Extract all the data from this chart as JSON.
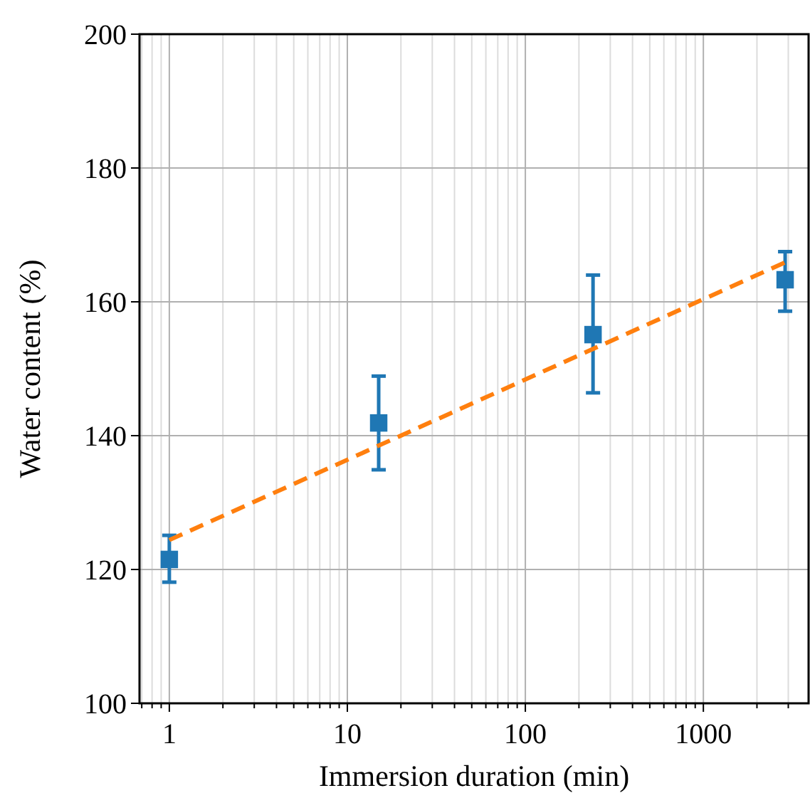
{
  "chart_data": {
    "type": "scatter",
    "xlabel": "Immersion duration (min)",
    "ylabel": "Water content (%)",
    "log": "x",
    "xlim": [
      0.68,
      3900
    ],
    "ylim": [
      100,
      200
    ],
    "xticks": [
      {
        "value": 0.7,
        "label": null
      },
      {
        "value": 0.8,
        "label": null
      },
      {
        "value": 0.9,
        "label": null
      },
      1,
      {
        "value": 2,
        "label": null
      },
      {
        "value": 3,
        "label": null
      },
      {
        "value": 4,
        "label": null
      },
      {
        "value": 5,
        "label": null
      },
      {
        "value": 6,
        "label": null
      },
      {
        "value": 7,
        "label": null
      },
      {
        "value": 8,
        "label": null
      },
      {
        "value": 9,
        "label": null
      },
      10,
      {
        "value": 20,
        "label": null
      },
      {
        "value": 30,
        "label": null
      },
      {
        "value": 40,
        "label": null
      },
      {
        "value": 50,
        "label": null
      },
      {
        "value": 60,
        "label": null
      },
      {
        "value": 70,
        "label": null
      },
      {
        "value": 80,
        "label": null
      },
      {
        "value": 90,
        "label": null
      },
      100,
      {
        "value": 200,
        "label": null
      },
      {
        "value": 300,
        "label": null
      },
      {
        "value": 400,
        "label": null
      },
      {
        "value": 500,
        "label": null
      },
      {
        "value": 600,
        "label": null
      },
      {
        "value": 700,
        "label": null
      },
      {
        "value": 800,
        "label": null
      },
      {
        "value": 900,
        "label": null
      },
      1000,
      {
        "value": 2000,
        "label": null
      },
      {
        "value": 3000,
        "label": null
      }
    ],
    "yticks": [
      100,
      120,
      140,
      160,
      180,
      200
    ],
    "grid": true,
    "series": [
      {
        "color": "#1f77b4",
        "marker": "square",
        "x": [
          1,
          15,
          240,
          2880
        ],
        "values": [
          121.5,
          141.9,
          155.1,
          163.3
        ],
        "errors": [
          [
            118.1,
            125.1
          ],
          [
            134.9,
            148.9
          ],
          [
            146.4,
            164.0
          ],
          [
            158.6,
            167.5
          ]
        ]
      },
      {
        "type": "line",
        "color": "#ff7f0e",
        "line_style": "dashed",
        "marker": "none",
        "x": [
          1,
          2880
        ],
        "values": [
          124.4,
          165.9
        ]
      }
    ]
  }
}
